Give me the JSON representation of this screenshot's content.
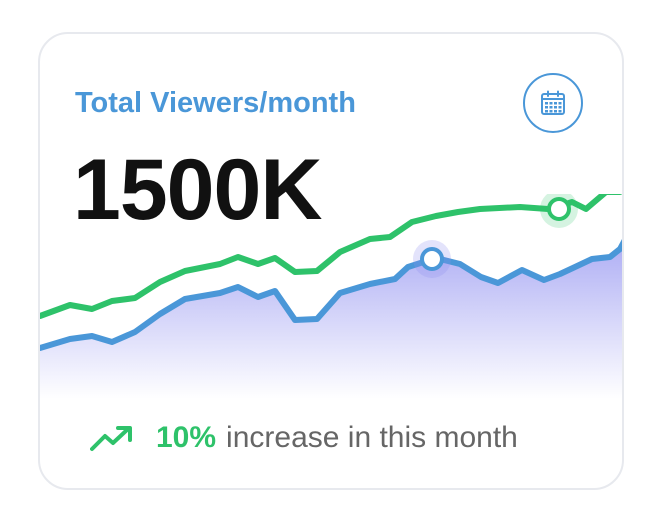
{
  "card": {
    "title": "Total Viewers/month",
    "value": "1500K",
    "calendar_icon": "calendar-icon",
    "footer": {
      "trend_icon": "trending-up-icon",
      "percent": "10%",
      "text": "increase in this month"
    }
  },
  "colors": {
    "title": "#4a97d8",
    "accent_green": "#2ec26a",
    "accent_blue": "#4a97d8",
    "fill_purple": "#8f8ff0",
    "value_text": "#111111",
    "muted_text": "#666666"
  }
}
